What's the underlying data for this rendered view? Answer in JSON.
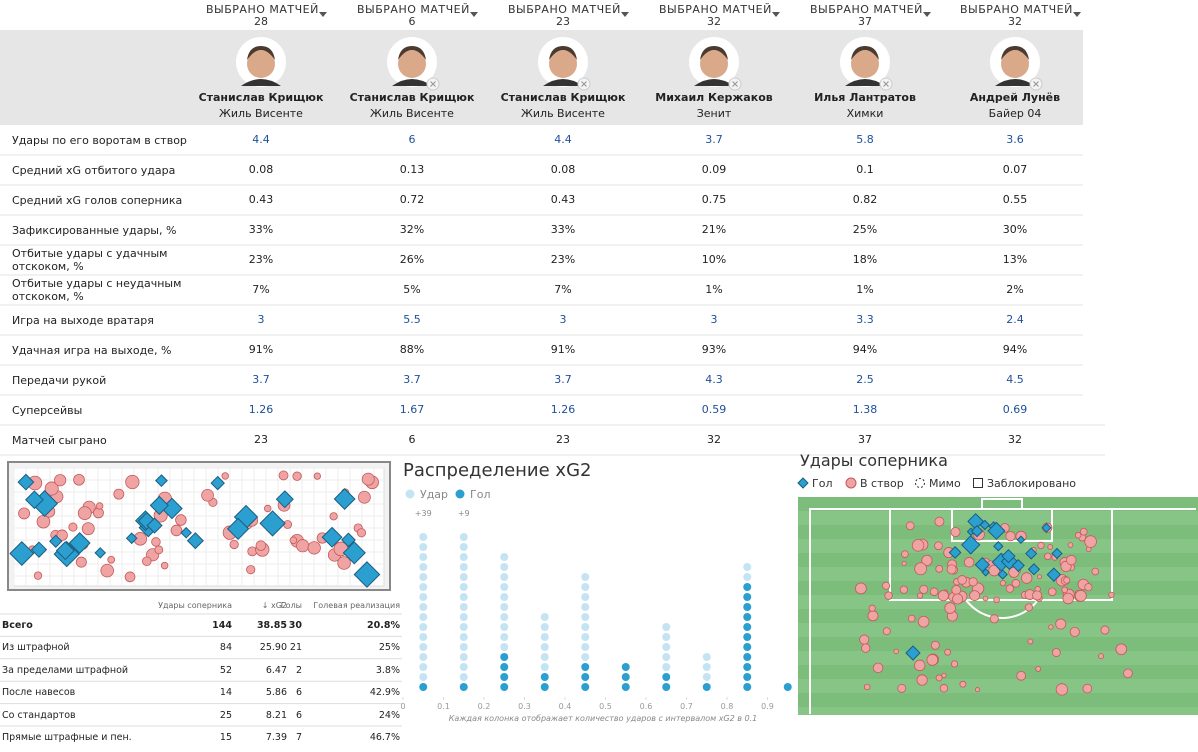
{
  "columns": [
    {
      "selector": "ВЫБРАНО МАТЧЕЙ",
      "matches": "28",
      "name": "Станислав Крищюк",
      "team": "Жиль Висенте",
      "removable": false
    },
    {
      "selector": "ВЫБРАНО МАТЧЕЙ",
      "matches": "6",
      "name": "Станислав Крищюк",
      "team": "Жиль Висенте",
      "removable": true
    },
    {
      "selector": "ВЫБРАНО МАТЧЕЙ",
      "matches": "23",
      "name": "Станислав Крищюк",
      "team": "Жиль Висенте",
      "removable": true
    },
    {
      "selector": "ВЫБРАНО МАТЧЕЙ",
      "matches": "32",
      "name": "Михаил Кержаков",
      "team": "Зенит",
      "removable": true
    },
    {
      "selector": "ВЫБРАНО МАТЧЕЙ",
      "matches": "37",
      "name": "Илья Лантратов",
      "team": "Химки",
      "removable": true
    },
    {
      "selector": "ВЫБРАНО МАТЧЕЙ",
      "matches": "32",
      "name": "Андрей Лунёв",
      "team": "Байер 04",
      "removable": true
    }
  ],
  "stats": {
    "rows": [
      {
        "label": "Удары по его воротам в створ",
        "values": [
          "4.4",
          "6",
          "4.4",
          "3.7",
          "5.8",
          "3.6"
        ],
        "link": true
      },
      {
        "label": "Средний xG отбитого удара",
        "values": [
          "0.08",
          "0.13",
          "0.08",
          "0.09",
          "0.1",
          "0.07"
        ],
        "link": false
      },
      {
        "label": "Средний xG голов соперника",
        "values": [
          "0.43",
          "0.72",
          "0.43",
          "0.75",
          "0.82",
          "0.55"
        ],
        "link": false
      },
      {
        "label": "Зафиксированные удары, %",
        "values": [
          "33%",
          "32%",
          "33%",
          "21%",
          "25%",
          "30%"
        ],
        "link": false
      },
      {
        "label": "Отбитые удары с удачным отскоком, %",
        "values": [
          "23%",
          "26%",
          "23%",
          "10%",
          "18%",
          "13%"
        ],
        "link": false
      },
      {
        "label": "Отбитые удары с неудачным отскоком, %",
        "values": [
          "7%",
          "5%",
          "7%",
          "1%",
          "1%",
          "2%"
        ],
        "link": false
      },
      {
        "label": "Игра на выходе вратаря",
        "values": [
          "3",
          "5.5",
          "3",
          "3",
          "3.3",
          "2.4"
        ],
        "link": true
      },
      {
        "label": "Удачная игра на выходе, %",
        "values": [
          "91%",
          "88%",
          "91%",
          "93%",
          "94%",
          "94%"
        ],
        "link": false
      },
      {
        "label": "Передачи рукой",
        "values": [
          "3.7",
          "3.7",
          "3.7",
          "4.3",
          "2.5",
          "4.5"
        ],
        "link": true
      },
      {
        "label": "Суперсейвы",
        "values": [
          "1.26",
          "1.67",
          "1.26",
          "0.59",
          "1.38",
          "0.69"
        ],
        "link": true
      },
      {
        "label": "Матчей сыграно",
        "values": [
          "23",
          "6",
          "23",
          "32",
          "37",
          "32"
        ],
        "link": false
      }
    ]
  },
  "summary": {
    "headers": [
      "Удары соперника",
      "↓ xG2",
      "Голы",
      "Голевая реализация"
    ],
    "rows": [
      [
        "Всего",
        "144",
        "38.85",
        "30",
        "20.8%"
      ],
      [
        "Из штрафной",
        "84",
        "25.90",
        "21",
        "25%"
      ],
      [
        "За пределами штрафной",
        "52",
        "6.47",
        "2",
        "3.8%"
      ],
      [
        "После навесов",
        "14",
        "5.86",
        "6",
        "42.9%"
      ],
      [
        "Со стандартов",
        "25",
        "8.21",
        "6",
        "24%"
      ],
      [
        "Прямые штрафные и пен.",
        "15",
        "7.39",
        "7",
        "46.7%"
      ]
    ]
  },
  "chart_data": {
    "type": "dot",
    "title": "Распределение xG2",
    "x": [
      0.05,
      0.15,
      0.25,
      0.35,
      0.45,
      0.55,
      0.65,
      0.75,
      0.85,
      0.95
    ],
    "series": [
      {
        "name": "Удар",
        "color": "#c4e4f3",
        "values": [
          15,
          15,
          10,
          6,
          9,
          0,
          5,
          3,
          2,
          0
        ]
      },
      {
        "name": "Гол",
        "color": "#2b9fd0",
        "values": [
          1,
          1,
          4,
          2,
          3,
          3,
          2,
          1,
          11,
          1
        ]
      }
    ],
    "xlim": [
      0,
      1
    ],
    "xticks": [
      0,
      0.1,
      0.2,
      0.3,
      0.4,
      0.5,
      0.6,
      0.7,
      0.8,
      0.9
    ],
    "annotations": [
      {
        "x": 0.05,
        "text": "+39"
      },
      {
        "x": 0.15,
        "text": "+9"
      }
    ],
    "caption": "Каждая колонка отображает количество ударов с интервалом xG2 в 0.1"
  },
  "shot_map": {
    "title": "Удары соперника",
    "legend": [
      "Гол",
      "В створ",
      "Мимо",
      "Заблокировано"
    ]
  }
}
